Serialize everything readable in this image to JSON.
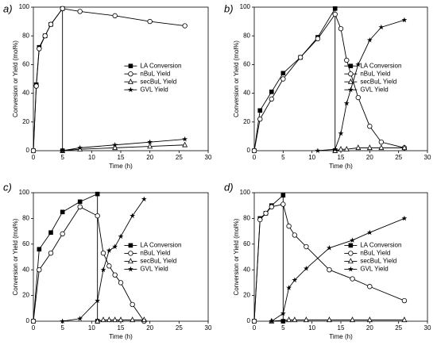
{
  "chart_data": [
    {
      "type": "line",
      "label": "a)",
      "xlabel": "Time (h)",
      "ylabel": "Conversion or Yield (mol%)",
      "xlim": [
        0,
        30
      ],
      "xticks": [
        0,
        5,
        10,
        15,
        20,
        25,
        30
      ],
      "ylim": [
        0,
        100
      ],
      "yticks": [
        0,
        20,
        40,
        60,
        80,
        100
      ],
      "legend": "right",
      "series": [
        {
          "name": "LA Conversion",
          "color": "#000000",
          "marker": "square",
          "x": [
            0,
            0.5,
            1,
            2,
            3,
            5,
            5
          ],
          "values": [
            0,
            46,
            72,
            80,
            88,
            99,
            0
          ]
        },
        {
          "name": "nBuL Yield",
          "color": "#000000",
          "marker": "circle",
          "x": [
            0,
            0.5,
            1,
            2,
            3,
            5,
            8,
            14,
            20,
            26
          ],
          "values": [
            0,
            45,
            71,
            80,
            88,
            99,
            97,
            94,
            90,
            87
          ]
        },
        {
          "name": "secBuL Yield",
          "color": "#000000",
          "marker": "triangle",
          "x": [
            5,
            8,
            14,
            20,
            26
          ],
          "values": [
            0,
            1,
            2,
            3,
            4
          ]
        },
        {
          "name": "GVL Yield",
          "color": "#000000",
          "marker": "star",
          "x": [
            5,
            8,
            14,
            20,
            26
          ],
          "values": [
            0,
            2,
            4,
            6,
            8
          ]
        }
      ]
    },
    {
      "type": "line",
      "label": "b)",
      "xlabel": "Time (h)",
      "ylabel": "Conversion or Yield (mol%)",
      "xlim": [
        0,
        30
      ],
      "xticks": [
        0,
        5,
        10,
        15,
        20,
        25,
        30
      ],
      "ylim": [
        0,
        100
      ],
      "yticks": [
        0,
        20,
        40,
        60,
        80,
        100
      ],
      "legend": "right",
      "series": [
        {
          "name": "LA Conversion",
          "color": "#000000",
          "marker": "square",
          "x": [
            0,
            1,
            3,
            5,
            8,
            11,
            14,
            14
          ],
          "values": [
            0,
            28,
            41,
            54,
            65,
            79,
            99,
            0
          ]
        },
        {
          "name": "nBuL Yield",
          "color": "#000000",
          "marker": "circle",
          "x": [
            0,
            1,
            3,
            5,
            8,
            11,
            14,
            15,
            16,
            18,
            20,
            22,
            26
          ],
          "values": [
            0,
            22,
            36,
            50,
            65,
            78,
            95,
            85,
            63,
            37,
            17,
            6,
            2
          ]
        },
        {
          "name": "secBuL Yield",
          "color": "#000000",
          "marker": "triangle",
          "x": [
            14,
            15,
            16,
            18,
            20,
            22,
            26
          ],
          "values": [
            0,
            1,
            1,
            2,
            2,
            2,
            2
          ]
        },
        {
          "name": "GVL Yield",
          "color": "#000000",
          "marker": "star",
          "x": [
            11,
            14,
            15,
            16,
            18,
            20,
            22,
            26
          ],
          "values": [
            0,
            1,
            12,
            33,
            60,
            77,
            86,
            91
          ]
        }
      ]
    },
    {
      "type": "line",
      "label": "c)",
      "xlabel": "Time (h)",
      "ylabel": "Conversion or Yield (mol%)",
      "xlim": [
        0,
        30
      ],
      "xticks": [
        0,
        5,
        10,
        15,
        20,
        25,
        30
      ],
      "ylim": [
        0,
        100
      ],
      "yticks": [
        0,
        20,
        40,
        60,
        80,
        100
      ],
      "legend": "right",
      "series": [
        {
          "name": "LA Conversion",
          "color": "#000000",
          "marker": "square",
          "x": [
            0,
            1,
            3,
            5,
            8,
            11,
            11
          ],
          "values": [
            0,
            56,
            69,
            85,
            93,
            99,
            0
          ]
        },
        {
          "name": "nBuL Yield",
          "color": "#000000",
          "marker": "circle",
          "x": [
            0,
            1,
            3,
            5,
            8,
            11,
            12,
            13,
            14,
            15,
            17,
            19
          ],
          "values": [
            0,
            40,
            53,
            68,
            89,
            82,
            53,
            43,
            36,
            30,
            13,
            0
          ]
        },
        {
          "name": "secBuL Yield",
          "color": "#000000",
          "marker": "triangle",
          "x": [
            11,
            12,
            13,
            14,
            15,
            17,
            19
          ],
          "values": [
            0,
            1,
            1,
            1,
            1,
            1,
            1
          ]
        },
        {
          "name": "GVL Yield",
          "color": "#000000",
          "marker": "star",
          "x": [
            5,
            8,
            11,
            12,
            13,
            14,
            15,
            17,
            19
          ],
          "values": [
            0,
            2,
            16,
            40,
            55,
            58,
            66,
            82,
            95
          ]
        }
      ]
    },
    {
      "type": "line",
      "label": "d)",
      "xlabel": "Time (h)",
      "ylabel": "Conversion or Yield (mol%)",
      "xlim": [
        0,
        30
      ],
      "xticks": [
        0,
        5,
        10,
        15,
        20,
        25,
        30
      ],
      "ylim": [
        0,
        100
      ],
      "yticks": [
        0,
        20,
        40,
        60,
        80,
        100
      ],
      "legend": "right",
      "series": [
        {
          "name": "LA Conversion",
          "color": "#000000",
          "marker": "square",
          "x": [
            0,
            1,
            2,
            3,
            5,
            5
          ],
          "values": [
            0,
            80,
            84,
            90,
            98,
            0
          ]
        },
        {
          "name": "nBuL Yield",
          "color": "#000000",
          "marker": "circle",
          "x": [
            0,
            1,
            2,
            3,
            5,
            6,
            7,
            9,
            13,
            17,
            20,
            26
          ],
          "values": [
            0,
            79,
            84,
            89,
            91,
            74,
            67,
            58,
            40,
            33,
            27,
            16
          ]
        },
        {
          "name": "secBuL Yield",
          "color": "#000000",
          "marker": "triangle",
          "x": [
            3,
            6,
            7,
            9,
            13,
            17,
            20,
            26
          ],
          "values": [
            0,
            1,
            1,
            1,
            1,
            1,
            1,
            1
          ]
        },
        {
          "name": "GVL Yield",
          "color": "#000000",
          "marker": "star",
          "x": [
            3,
            5,
            6,
            7,
            9,
            13,
            17,
            20,
            26
          ],
          "values": [
            0,
            6,
            26,
            32,
            41,
            57,
            63,
            69,
            80
          ]
        }
      ]
    }
  ]
}
